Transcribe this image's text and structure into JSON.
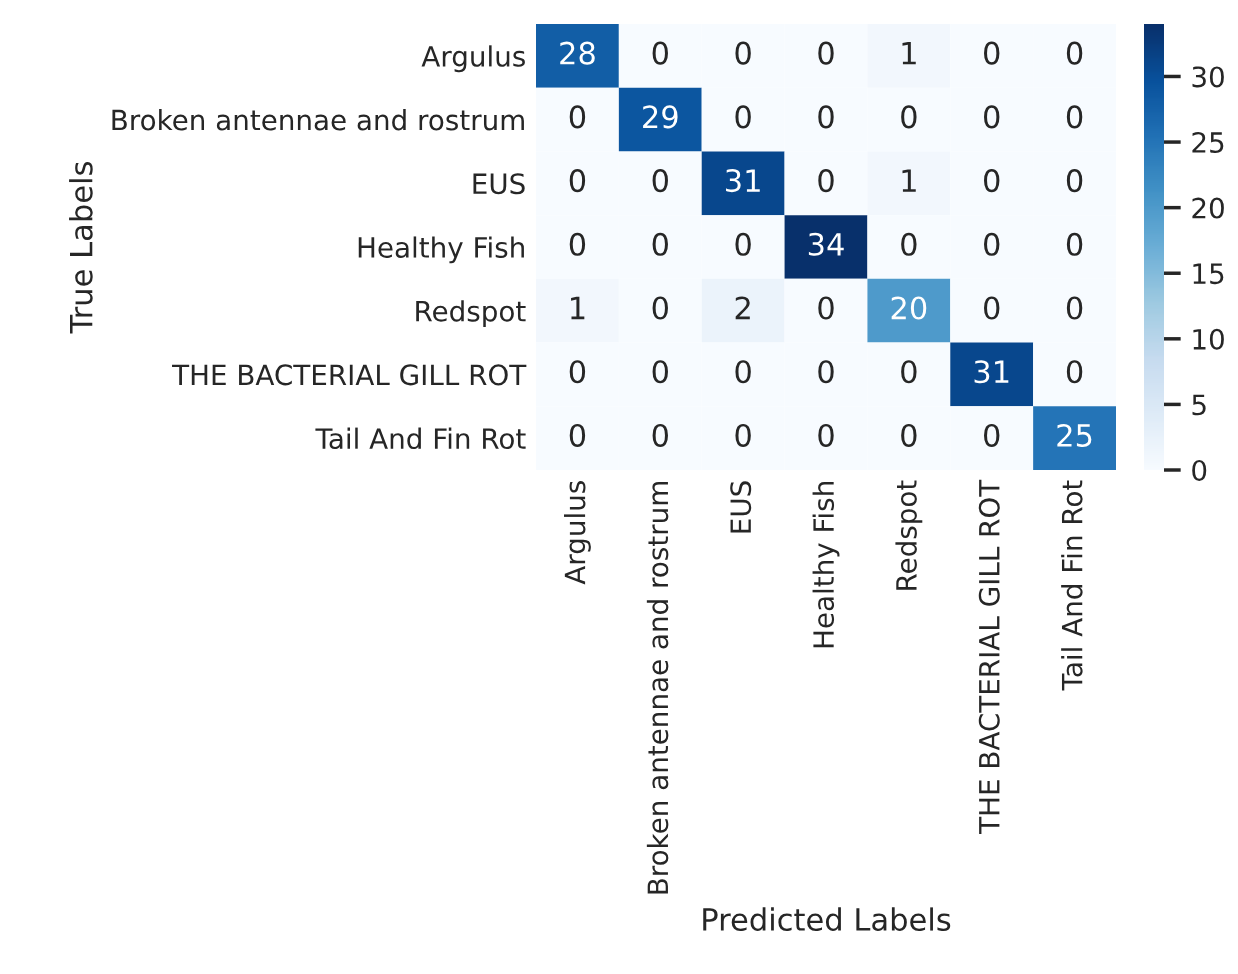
{
  "chart_data": {
    "type": "heatmap",
    "xlabel": "Predicted Labels",
    "ylabel": "True Labels",
    "categories": [
      "Argulus",
      "Broken antennae and rostrum",
      "EUS",
      "Healthy Fish",
      "Redspot",
      "THE BACTERIAL GILL ROT",
      "Tail And Fin Rot"
    ],
    "y_categories": [
      "Argulus",
      "Broken antennae and rostrum",
      "EUS",
      "Healthy Fish",
      "Redspot",
      "THE BACTERIAL GILL ROT",
      "Tail And Fin Rot"
    ],
    "cells": [
      [
        28,
        0,
        0,
        0,
        1,
        0,
        0
      ],
      [
        0,
        29,
        0,
        0,
        0,
        0,
        0
      ],
      [
        0,
        0,
        31,
        0,
        1,
        0,
        0
      ],
      [
        0,
        0,
        0,
        34,
        0,
        0,
        0
      ],
      [
        1,
        0,
        2,
        0,
        20,
        0,
        0
      ],
      [
        0,
        0,
        0,
        0,
        0,
        31,
        0
      ],
      [
        0,
        0,
        0,
        0,
        0,
        0,
        25
      ]
    ],
    "clim": [
      0,
      34
    ],
    "cticks": [
      0,
      5,
      10,
      15,
      20,
      25,
      30
    ],
    "data_labels": true
  }
}
